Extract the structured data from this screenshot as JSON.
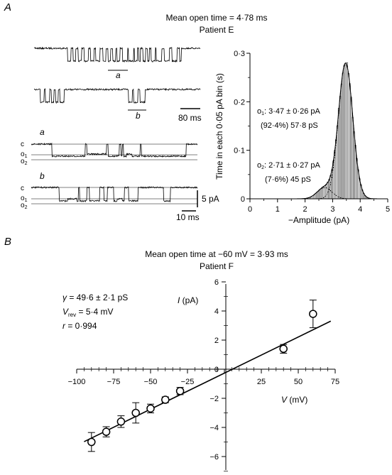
{
  "panelA": {
    "label": "A",
    "title": "Mean open time = 4·78 ms",
    "subtitle": "Patient E",
    "trace_labels": {
      "a": "a",
      "b": "b"
    },
    "time_scale_top": "80 ms",
    "inset_labels": {
      "a": "a",
      "b": "b",
      "c": "c",
      "o1": "o",
      "o1_sub": "1",
      "o2": "o",
      "o2_sub": "2"
    },
    "current_scale": "5 pA",
    "time_scale_bottom": "10 ms",
    "annotation_o1": {
      "sym": "o",
      "sub": "1",
      "text": ": 3·47 ± 0·26 pA",
      "line2": "(92·4%) 57·8 pS"
    },
    "annotation_o2": {
      "sym": "o",
      "sub": "2",
      "text": ": 2·71 ± 0·27 pA",
      "line2": "(7·6%) 45 pS"
    }
  },
  "panelB": {
    "label": "B",
    "title": "Mean open time at −60 mV = 3·93 ms",
    "subtitle": "Patient F",
    "stats": {
      "gamma_sym": "γ",
      "gamma": " = 49·6 ± 2·1 pS",
      "vrev_sym": "V",
      "vrev_sub": "rev",
      "vrev": " = 5·4 mV",
      "r_sym": "r",
      "r": " = 0·994"
    }
  },
  "chart_data": [
    {
      "type": "bar",
      "panel": "A",
      "ylabel": "Time in each 0·05 pA bin (s)",
      "xlabel": "−Amplitude (pA)",
      "xlim": [
        0,
        5
      ],
      "ylim": [
        0,
        0.3
      ],
      "x_ticks": [
        0,
        1,
        2,
        3,
        4,
        5
      ],
      "x_tick_labels": [
        "0",
        "1",
        "2",
        "3",
        "4",
        "5"
      ],
      "y_ticks": [
        0,
        0.1,
        0.2,
        0.3
      ],
      "y_tick_labels": [
        "0",
        "0·1",
        "0·2",
        "0·3"
      ],
      "grid": false,
      "components": [
        {
          "name": "o1",
          "mean": 3.47,
          "sd": 0.26,
          "fraction": 0.924
        },
        {
          "name": "o2",
          "mean": 2.71,
          "sd": 0.27,
          "fraction": 0.076
        }
      ],
      "peak_y": 0.28,
      "o2_peak_y": 0.023
    },
    {
      "type": "scatter",
      "panel": "B",
      "xlabel_sym": "V",
      "xlabel_unit": " (mV)",
      "ylabel_sym": "I",
      "ylabel_unit": " (pA)",
      "xlim": [
        -100,
        75
      ],
      "ylim": [
        -7,
        6
      ],
      "x_ticks": [
        -100,
        -75,
        -50,
        -25,
        0,
        25,
        50,
        75
      ],
      "x_tick_labels": [
        "−100",
        "−75",
        "−50",
        "−25",
        "0",
        "25",
        "50",
        "75"
      ],
      "y_ticks": [
        -6,
        -4,
        -2,
        0,
        2,
        4,
        6
      ],
      "y_tick_labels": [
        "−6",
        "−4",
        "−2",
        "0",
        "2",
        "4",
        "6"
      ],
      "points": [
        {
          "x": -90,
          "y": -5.0,
          "err": 0.65
        },
        {
          "x": -80,
          "y": -4.3,
          "err": 0.35
        },
        {
          "x": -70,
          "y": -3.6,
          "err": 0.4
        },
        {
          "x": -60,
          "y": -3.0,
          "err": 0.7
        },
        {
          "x": -50,
          "y": -2.7,
          "err": 0.3
        },
        {
          "x": -40,
          "y": -2.1,
          "err": 0.2
        },
        {
          "x": -30,
          "y": -1.5,
          "err": 0.25
        },
        {
          "x": 40,
          "y": 1.4,
          "err": 0.3
        },
        {
          "x": 60,
          "y": 3.8,
          "err": 0.95
        }
      ],
      "fit": {
        "slope": 0.0496,
        "x_intercept": 5.4,
        "x_range": [
          -95,
          72
        ]
      },
      "grid": false
    }
  ]
}
